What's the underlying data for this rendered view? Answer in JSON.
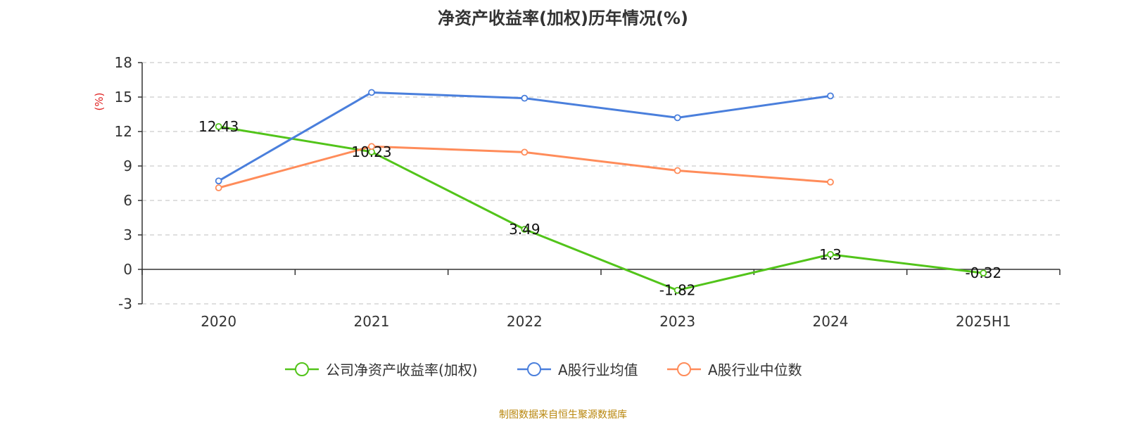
{
  "chart_data": {
    "type": "line",
    "title": "净资产收益率(加权)历年情况(%)",
    "ylabel": "(%)",
    "xlabel": "",
    "categories": [
      "2020",
      "2021",
      "2022",
      "2023",
      "2024",
      "2025H1"
    ],
    "ylim": [
      -3,
      18
    ],
    "yticks": [
      -3,
      0,
      3,
      6,
      9,
      12,
      15,
      18
    ],
    "grid": true,
    "legend_position": "bottom",
    "series": [
      {
        "name": "公司净资产收益率(加权)",
        "color": "#52c41a",
        "values": [
          12.43,
          10.23,
          3.49,
          -1.82,
          1.3,
          -0.32
        ],
        "labels": [
          "12.43",
          "10.23",
          "3.49",
          "-1.82",
          "1.3",
          "-0.32"
        ]
      },
      {
        "name": "A股行业均值",
        "color": "#4a7fdc",
        "values": [
          7.7,
          15.4,
          14.9,
          13.2,
          15.1,
          null
        ]
      },
      {
        "name": "A股行业中位数",
        "color": "#ff8c5a",
        "values": [
          7.1,
          10.7,
          10.2,
          8.6,
          7.6,
          null
        ]
      }
    ]
  },
  "footer": {
    "source": "制图数据来自恒生聚源数据库"
  }
}
